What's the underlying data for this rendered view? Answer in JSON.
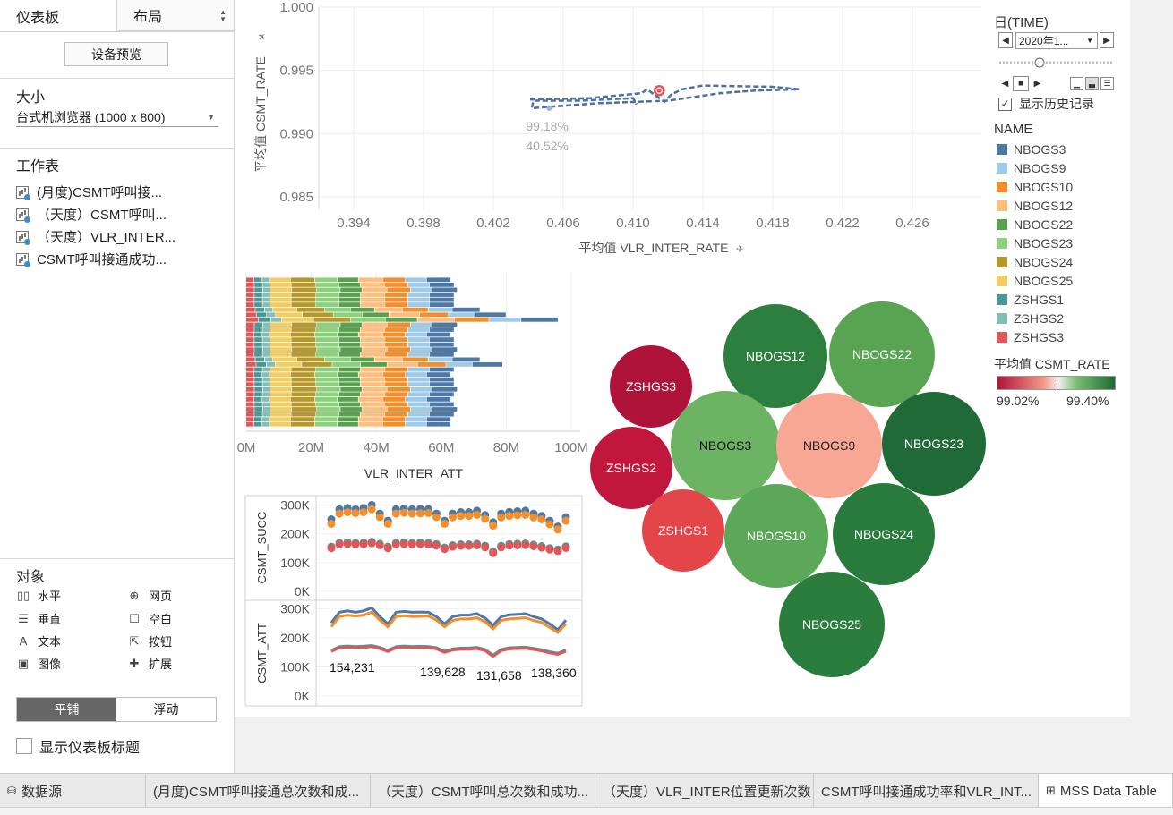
{
  "left_panel": {
    "tabs": [
      {
        "label": "仪表板"
      },
      {
        "label": "布局"
      }
    ],
    "device_preview_label": "设备预览",
    "size": {
      "title": "大小",
      "value": "台式机浏览器 (1000 x 800)"
    },
    "sheets": {
      "title": "工作表",
      "items": [
        "(月度)CSMT呼叫接...",
        "（天度）CSMT呼叫...",
        "（天度）VLR_INTER...",
        "CSMT呼叫接通成功..."
      ]
    },
    "objects": {
      "title": "对象",
      "items": [
        {
          "label": "水平",
          "icon": "horizontal-icon"
        },
        {
          "label": "网页",
          "icon": "globe-icon"
        },
        {
          "label": "垂直",
          "icon": "vertical-icon"
        },
        {
          "label": "空白",
          "icon": "blank-icon"
        },
        {
          "label": "文本",
          "icon": "text-icon"
        },
        {
          "label": "按钮",
          "icon": "button-icon"
        },
        {
          "label": "图像",
          "icon": "image-icon"
        },
        {
          "label": "扩展",
          "icon": "extension-icon"
        }
      ]
    },
    "layout_toggle": {
      "tiled": "平铺",
      "floating": "浮动"
    },
    "show_title_label": "显示仪表板标题"
  },
  "legend": {
    "page_title": "日(TIME)",
    "date_value": "2020年1...",
    "show_history_label": "显示历史记录",
    "name_title": "NAME",
    "names": [
      {
        "name": "NBOGS3",
        "color": "#4e79a7"
      },
      {
        "name": "NBOGS9",
        "color": "#a0cbe8"
      },
      {
        "name": "NBOGS10",
        "color": "#f28e2b"
      },
      {
        "name": "NBOGS12",
        "color": "#ffbe7d"
      },
      {
        "name": "NBOGS22",
        "color": "#59a14f"
      },
      {
        "name": "NBOGS23",
        "color": "#8cd17d"
      },
      {
        "name": "NBOGS24",
        "color": "#b6992d"
      },
      {
        "name": "NBOGS25",
        "color": "#f1ce63"
      },
      {
        "name": "ZSHGS1",
        "color": "#499894"
      },
      {
        "name": "ZSHGS2",
        "color": "#86bcb6"
      },
      {
        "name": "ZSHGS3",
        "color": "#e15759"
      }
    ],
    "color_title": "平均值 CSMT_RATE",
    "color_min": "99.02%",
    "color_max": "99.40%"
  },
  "tabs": [
    {
      "label": "数据源",
      "icon": "database-icon"
    },
    {
      "label": "(月度)CSMT呼叫接通总次数和成..."
    },
    {
      "label": "（天度）CSMT呼叫总次数和成功..."
    },
    {
      "label": "（天度）VLR_INTER位置更新次数"
    },
    {
      "label": "CSMT呼叫接通成功率和VLR_INT..."
    },
    {
      "label": "MSS Data Table",
      "icon": "grid-icon"
    }
  ],
  "chart_data": [
    {
      "type": "line",
      "xlabel": "平均值 VLR_INTER_RATE",
      "ylabel": "平均值 CSMT_RATE",
      "xlim": [
        0.392,
        0.43
      ],
      "ylim": [
        0.984,
        1.0
      ],
      "xticks": [
        "0.394",
        "0.398",
        "0.402",
        "0.406",
        "0.410",
        "0.414",
        "0.418",
        "0.422",
        "0.426"
      ],
      "yticks": [
        "1.000",
        "0.995",
        "0.990",
        "0.985"
      ],
      "path": [
        [
          0.4041,
          0.9927
        ],
        [
          0.4075,
          0.9928
        ],
        [
          0.4105,
          0.9932
        ],
        [
          0.4108,
          0.9935
        ],
        [
          0.4112,
          0.9931
        ],
        [
          0.4118,
          0.9925
        ],
        [
          0.4122,
          0.9931
        ],
        [
          0.4128,
          0.9935
        ],
        [
          0.414,
          0.9938
        ],
        [
          0.418,
          0.9937
        ],
        [
          0.4195,
          0.9935
        ],
        [
          0.417,
          0.9934
        ],
        [
          0.415,
          0.9932
        ],
        [
          0.412,
          0.9926
        ],
        [
          0.408,
          0.9924
        ],
        [
          0.405,
          0.9921
        ],
        [
          0.4042,
          0.992
        ],
        [
          0.4043,
          0.9926
        ],
        [
          0.407,
          0.9926
        ],
        [
          0.41,
          0.9928
        ],
        [
          0.4102,
          0.9923
        ]
      ],
      "highlight": [
        0.4115,
        0.9934
      ],
      "history_start": [
        0.4052,
        0.992
      ],
      "annotation": [
        "99.18%",
        "40.52%"
      ]
    },
    {
      "type": "bar",
      "stacked": true,
      "orientation": "horizontal",
      "xlabel": "VLR_INTER_ATT",
      "xticks": [
        "0M",
        "20M",
        "40M",
        "60M",
        "80M",
        "100M"
      ],
      "xlim": [
        0,
        100
      ],
      "rows": 30,
      "segment_series": [
        "ZSHGS3",
        "ZSHGS1",
        "ZSHGS2",
        "NBOGS25",
        "NBOGS24",
        "NBOGS23",
        "NBOGS22",
        "NBOGS12",
        "NBOGS10",
        "NBOGS9",
        "NBOGS3"
      ],
      "base_segments": [
        2.5,
        2.5,
        2.2,
        6.5,
        7.5,
        7.0,
        6.5,
        7.5,
        7.0,
        6.5,
        7.5
      ],
      "row_totals": [
        63,
        64,
        65,
        64,
        64,
        64,
        72,
        80,
        96,
        65,
        64,
        63,
        64,
        64,
        65,
        64,
        72,
        79,
        64,
        63,
        64,
        64,
        65,
        64,
        63,
        64,
        65,
        64,
        63,
        63
      ]
    },
    {
      "type": "scatter",
      "ylabel": "CSMT_SUCC",
      "yticks": [
        "300K",
        "200K",
        "100K",
        "0K"
      ],
      "ylim": [
        0,
        320000
      ],
      "x": [
        1,
        2,
        3,
        4,
        5,
        6,
        7,
        8,
        9,
        10,
        11,
        12,
        13,
        14,
        15,
        16,
        17,
        18,
        19,
        20,
        21,
        22,
        23,
        24,
        25,
        26,
        27,
        28,
        29,
        30
      ],
      "series": [
        {
          "name": "NBOGS3",
          "color": "#4e79a7",
          "values": [
            250000,
            285000,
            290000,
            285000,
            290000,
            300000,
            270000,
            245000,
            285000,
            288000,
            285000,
            286000,
            285000,
            270000,
            245000,
            270000,
            275000,
            275000,
            280000,
            265000,
            240000,
            270000,
            276000,
            278000,
            280000,
            270000,
            262000,
            245000,
            225000,
            258000
          ]
        },
        {
          "name": "NBOGS10",
          "color": "#f28e2b",
          "values": [
            235000,
            270000,
            275000,
            272000,
            275000,
            285000,
            258000,
            235000,
            270000,
            273000,
            270000,
            271000,
            272000,
            258000,
            235000,
            257000,
            262000,
            262000,
            266000,
            252000,
            228000,
            257000,
            262000,
            264000,
            266000,
            257000,
            250000,
            233000,
            215000,
            245000
          ]
        },
        {
          "name": "ZSHGS1",
          "color": "#499894",
          "values": [
            155000,
            168000,
            170000,
            168000,
            169000,
            172000,
            165000,
            155000,
            168000,
            170000,
            168000,
            169000,
            168000,
            164000,
            152000,
            160000,
            163000,
            163000,
            165000,
            158000,
            138000,
            158000,
            164000,
            165000,
            166000,
            162000,
            157000,
            150000,
            145000,
            156000
          ]
        },
        {
          "name": "ZSHGS3",
          "color": "#e15759",
          "values": [
            150000,
            163000,
            165000,
            163000,
            164000,
            167000,
            160000,
            150000,
            163000,
            165000,
            163000,
            164000,
            163000,
            159000,
            147000,
            155000,
            158000,
            158000,
            160000,
            153000,
            133000,
            153000,
            159000,
            160000,
            161000,
            157000,
            152000,
            145000,
            140000,
            151000
          ]
        }
      ]
    },
    {
      "type": "line",
      "ylabel": "CSMT_ATT",
      "yticks": [
        "300K",
        "200K",
        "100K",
        "0K"
      ],
      "ylim": [
        0,
        320000
      ],
      "x": [
        1,
        2,
        3,
        4,
        5,
        6,
        7,
        8,
        9,
        10,
        11,
        12,
        13,
        14,
        15,
        16,
        17,
        18,
        19,
        20,
        21,
        22,
        23,
        24,
        25,
        26,
        27,
        28,
        29,
        30
      ],
      "series": [
        {
          "name": "NBOGS3",
          "color": "#4e79a7",
          "values": [
            252000,
            288000,
            293000,
            288000,
            293000,
            303000,
            273000,
            248000,
            288000,
            291000,
            288000,
            289000,
            288000,
            273000,
            248000,
            273000,
            278000,
            278000,
            283000,
            268000,
            243000,
            273000,
            279000,
            281000,
            283000,
            273000,
            265000,
            248000,
            228000,
            261000
          ]
        },
        {
          "name": "NBOGS10",
          "color": "#f28e2b",
          "values": [
            238000,
            273000,
            278000,
            275000,
            278000,
            288000,
            261000,
            238000,
            273000,
            276000,
            273000,
            274000,
            275000,
            261000,
            238000,
            260000,
            265000,
            265000,
            269000,
            255000,
            231000,
            260000,
            265000,
            267000,
            269000,
            260000,
            253000,
            236000,
            218000,
            248000
          ]
        },
        {
          "name": "ZSHGS1",
          "color": "#499894",
          "values": [
            157000,
            170000,
            172000,
            170000,
            171000,
            174000,
            167000,
            157000,
            170000,
            172000,
            170000,
            171000,
            170000,
            166000,
            154000,
            162000,
            165000,
            165000,
            167000,
            160000,
            140000,
            160000,
            166000,
            167000,
            168000,
            164000,
            159000,
            152000,
            147000,
            158000
          ]
        },
        {
          "name": "ZSHGS3",
          "color": "#e15759",
          "values": [
            153000,
            166000,
            168000,
            166000,
            167000,
            170000,
            163000,
            153000,
            166000,
            168000,
            166000,
            167000,
            166000,
            162000,
            150000,
            158000,
            161000,
            161000,
            163000,
            156000,
            136000,
            156000,
            162000,
            163000,
            164000,
            160000,
            155000,
            148000,
            143000,
            154000
          ]
        }
      ],
      "labels": [
        "154,231",
        "139,628",
        "131,658",
        "138,360"
      ]
    },
    {
      "type": "bubble",
      "measure": "平均值 CSMT_RATE",
      "bubbles": [
        {
          "name": "NBOGS12",
          "color": "#2d7f3f"
        },
        {
          "name": "NBOGS22",
          "color": "#58a453"
        },
        {
          "name": "ZSHGS3",
          "color": "#b0133a"
        },
        {
          "name": "NBOGS3",
          "color": "#6cb463"
        },
        {
          "name": "NBOGS9",
          "color": "#f9a795"
        },
        {
          "name": "NBOGS23",
          "color": "#1f6a36"
        },
        {
          "name": "ZSHGS2",
          "color": "#c2173c"
        },
        {
          "name": "ZSHGS1",
          "color": "#e34548"
        },
        {
          "name": "NBOGS10",
          "color": "#5aa858"
        },
        {
          "name": "NBOGS24",
          "color": "#287b3c"
        },
        {
          "name": "NBOGS25",
          "color": "#2b7d3d"
        }
      ]
    }
  ]
}
